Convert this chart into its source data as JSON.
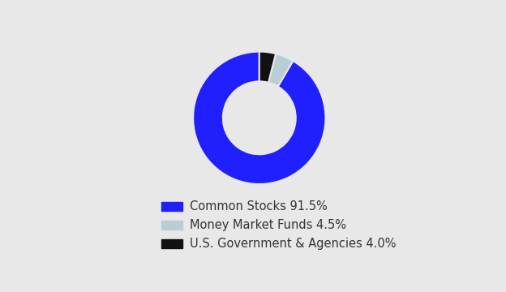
{
  "slices": [
    91.5,
    4.5,
    4.0
  ],
  "colors": [
    "#2020ff",
    "#b8cdd4",
    "#111111"
  ],
  "labels": [
    "Common Stocks 91.5%",
    "Money Market Funds 4.5%",
    "U.S. Government & Agencies 4.0%"
  ],
  "background_color": "#e8e8e8",
  "donut_width": 0.45,
  "startangle": 90,
  "font_size": 10.5
}
